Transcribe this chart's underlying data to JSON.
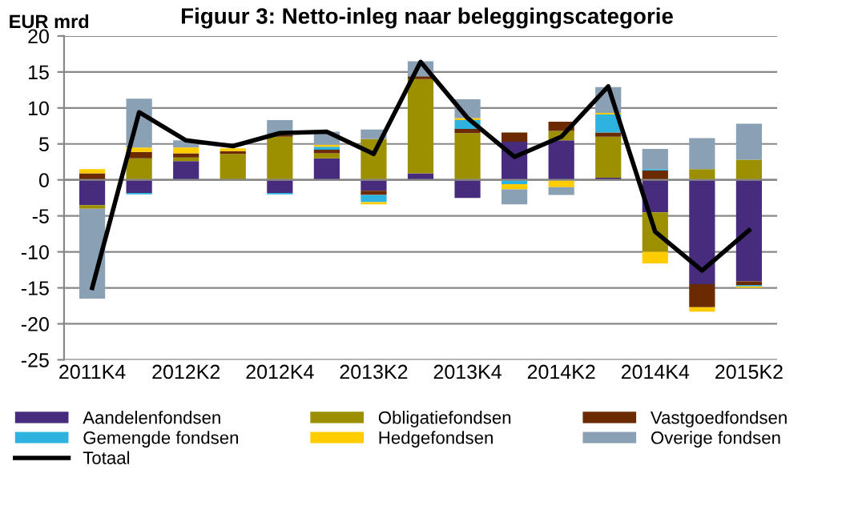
{
  "chart_data": {
    "type": "bar",
    "stacked": true,
    "title": "Figuur 3: Netto-inleg naar beleggingscategorie",
    "ylabel": "EUR mrd",
    "categories": [
      "2011K4",
      null,
      "2012K2",
      null,
      "2012K4",
      null,
      "2013K2",
      null,
      "2013K4",
      null,
      "2014K2",
      null,
      "2014K4",
      null,
      "2015K2"
    ],
    "series": [
      {
        "name": "Aandelenfondsen",
        "color": "#472c7e",
        "values": [
          -3.5,
          -1.8,
          2.6,
          0,
          -1.8,
          3.0,
          -1.5,
          0.9,
          -2.5,
          5.3,
          5.5,
          0.3,
          -4.5,
          -14.5,
          -14.1
        ]
      },
      {
        "name": "Obligatiefondsen",
        "color": "#9c9000",
        "values": [
          -0.5,
          3.0,
          0.5,
          3.6,
          6.0,
          0.7,
          5.7,
          13.1,
          6.5,
          0,
          1.3,
          5.7,
          -5.5,
          1.5,
          2.8
        ]
      },
      {
        "name": "Vastgoedfondsen",
        "color": "#6b2a00",
        "values": [
          0.9,
          0.9,
          0.6,
          0.4,
          0.2,
          0.5,
          -0.6,
          0.4,
          0.6,
          1.3,
          1.3,
          0.6,
          1.3,
          -3.2,
          -0.5
        ]
      },
      {
        "name": "Gemengde fondsen",
        "color": "#2eb3e0",
        "values": [
          0,
          -0.2,
          0,
          0,
          -0.2,
          0.4,
          -1.0,
          0,
          1.2,
          -0.6,
          0,
          2.5,
          0.2,
          0,
          -0.2
        ]
      },
      {
        "name": "Hedgefondsen",
        "color": "#ffcc00",
        "values": [
          0.6,
          0.6,
          0.8,
          0.4,
          0,
          0.3,
          -0.3,
          0,
          0.3,
          -0.7,
          -1.0,
          0.2,
          -1.6,
          -0.6,
          -0.2
        ]
      },
      {
        "name": "Overige fondsen",
        "color": "#8aa0b4",
        "values": [
          -12.5,
          6.8,
          1.0,
          null,
          2.1,
          1.8,
          1.3,
          2.1,
          2.6,
          -2.1,
          -1.1,
          3.6,
          2.8,
          4.3,
          5.0
        ]
      },
      {
        "name": "Totaal",
        "type": "line",
        "color": "#000000",
        "values": [
          -15,
          9.4,
          5.5,
          4.7,
          6.5,
          6.7,
          3.6,
          16.4,
          8.6,
          3.2,
          6.0,
          13.0,
          -7.2,
          -12.6,
          -7.0
        ]
      }
    ],
    "ylim": [
      -25,
      20
    ],
    "yticks": [
      -25,
      -20,
      -15,
      -10,
      -5,
      0,
      5,
      10,
      15,
      20
    ],
    "grid": "y",
    "legend": "bottom"
  }
}
